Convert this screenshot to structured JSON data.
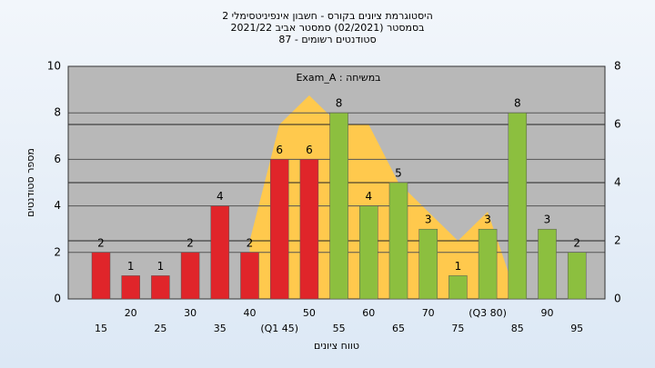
{
  "chart_data": {
    "type": "bar",
    "title": [
      "היסטוגרמת ציונים בקורס - חשבון אינפיניטסימלי 2",
      "בסמסטר  (02/2021)  סמסטר אביב 2021/22",
      "סטודנטים רשומים - 87"
    ],
    "annotation": "Exam_A : במשיחה",
    "y_label": "מספר סטודנטים",
    "x_label": "טווח ציונים",
    "categories": [
      "15",
      "20",
      "25",
      "30",
      "35",
      "40",
      "(Q1 45)",
      "50",
      "55",
      "60",
      "65",
      "70",
      "75",
      "(Q3 80)",
      "85",
      "90",
      "95"
    ],
    "values": [
      2,
      1,
      1,
      2,
      4,
      2,
      6,
      6,
      8,
      4,
      5,
      3,
      1,
      3,
      8,
      3,
      2
    ],
    "colors": [
      "#e0252a",
      "#e0252a",
      "#e0252a",
      "#e0252a",
      "#e0252a",
      "#e0252a",
      "#e0252a",
      "#e0252a",
      "#8cbf3f",
      "#8cbf3f",
      "#8cbf3f",
      "#8cbf3f",
      "#8cbf3f",
      "#8cbf3f",
      "#8cbf3f",
      "#8cbf3f",
      "#8cbf3f"
    ],
    "area": {
      "axis": "y2",
      "color": "#ffc94d",
      "values": [
        null,
        null,
        null,
        null,
        null,
        2,
        6,
        7,
        6,
        6,
        4,
        3,
        2,
        3,
        0,
        null,
        null
      ]
    },
    "ylim": [
      0,
      10
    ],
    "yticks": [
      0,
      2,
      4,
      6,
      8,
      10
    ],
    "y2lim": [
      0,
      8
    ],
    "y2ticks": [
      0,
      2,
      4,
      6,
      8
    ],
    "grid": true
  }
}
